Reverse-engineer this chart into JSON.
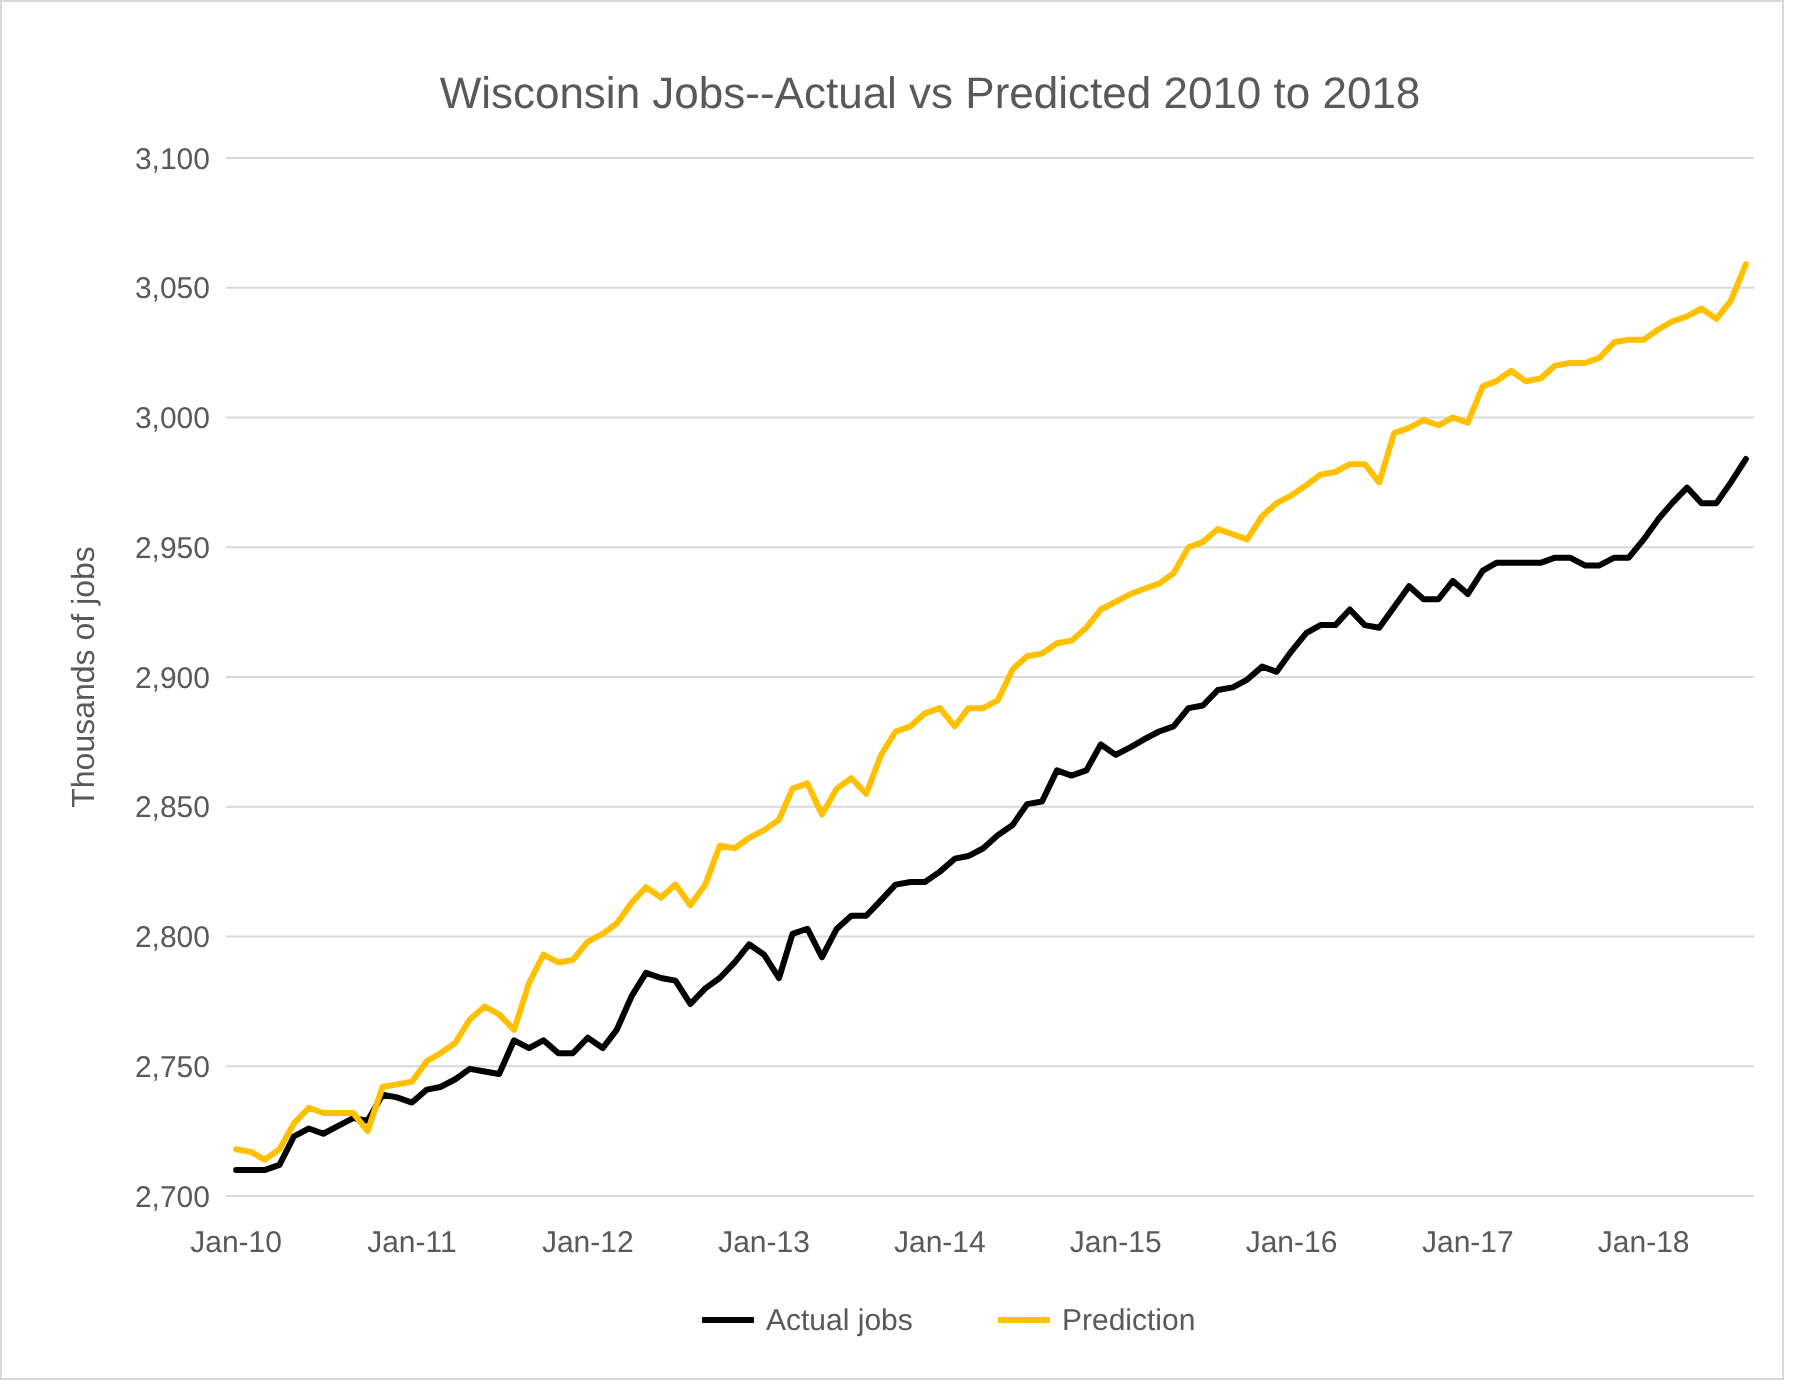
{
  "chart_data": {
    "type": "line",
    "title": "Wisconsin Jobs--Actual vs Predicted 2010 to 2018",
    "ylabel": "Thousands of jobs",
    "x": [
      "2010-01",
      "2010-02",
      "2010-03",
      "2010-04",
      "2010-05",
      "2010-06",
      "2010-07",
      "2010-08",
      "2010-09",
      "2010-10",
      "2010-11",
      "2010-12",
      "2011-01",
      "2011-02",
      "2011-03",
      "2011-04",
      "2011-05",
      "2011-06",
      "2011-07",
      "2011-08",
      "2011-09",
      "2011-10",
      "2011-11",
      "2011-12",
      "2012-01",
      "2012-02",
      "2012-03",
      "2012-04",
      "2012-05",
      "2012-06",
      "2012-07",
      "2012-08",
      "2012-09",
      "2012-10",
      "2012-11",
      "2012-12",
      "2013-01",
      "2013-02",
      "2013-03",
      "2013-04",
      "2013-05",
      "2013-06",
      "2013-07",
      "2013-08",
      "2013-09",
      "2013-10",
      "2013-11",
      "2013-12",
      "2014-01",
      "2014-02",
      "2014-03",
      "2014-04",
      "2014-05",
      "2014-06",
      "2014-07",
      "2014-08",
      "2014-09",
      "2014-10",
      "2014-11",
      "2014-12",
      "2015-01",
      "2015-02",
      "2015-03",
      "2015-04",
      "2015-05",
      "2015-06",
      "2015-07",
      "2015-08",
      "2015-09",
      "2015-10",
      "2015-11",
      "2015-12",
      "2016-01",
      "2016-02",
      "2016-03",
      "2016-04",
      "2016-05",
      "2016-06",
      "2016-07",
      "2016-08",
      "2016-09",
      "2016-10",
      "2016-11",
      "2016-12",
      "2017-01",
      "2017-02",
      "2017-03",
      "2017-04",
      "2017-05",
      "2017-06",
      "2017-07",
      "2017-08",
      "2017-09",
      "2017-10",
      "2017-11",
      "2017-12",
      "2018-01",
      "2018-02",
      "2018-03",
      "2018-04",
      "2018-05",
      "2018-06",
      "2018-07",
      "2018-08"
    ],
    "series": [
      {
        "name": "Actual jobs",
        "color": "#000000",
        "values": [
          2710,
          2710,
          2710,
          2712,
          2723,
          2726,
          2724,
          2727,
          2730,
          2729,
          2739,
          2738,
          2736,
          2741,
          2742,
          2745,
          2749,
          2748,
          2747,
          2760,
          2757,
          2760,
          2755,
          2755,
          2761,
          2757,
          2764,
          2777,
          2786,
          2784,
          2783,
          2774,
          2780,
          2784,
          2790,
          2797,
          2793,
          2784,
          2801,
          2803,
          2792,
          2803,
          2808,
          2808,
          2814,
          2820,
          2821,
          2821,
          2825,
          2830,
          2831,
          2834,
          2839,
          2843,
          2851,
          2852,
          2864,
          2862,
          2864,
          2874,
          2870,
          2873,
          2876,
          2879,
          2881,
          2888,
          2889,
          2895,
          2896,
          2899,
          2904,
          2902,
          2910,
          2917,
          2920,
          2920,
          2926,
          2920,
          2919,
          2927,
          2935,
          2930,
          2930,
          2937,
          2932,
          2941,
          2944,
          2944,
          2944,
          2944,
          2946,
          2946,
          2943,
          2943,
          2946,
          2946,
          2953,
          2961,
          2967,
          2973,
          2967,
          2967,
          2975,
          2984
        ]
      },
      {
        "name": "Prediction",
        "color": "#ffc000",
        "values": [
          2718,
          2717,
          2714,
          2718,
          2728,
          2734,
          2732,
          2732,
          2732,
          2725,
          2742,
          2743,
          2744,
          2752,
          2755,
          2759,
          2768,
          2773,
          2770,
          2764,
          2782,
          2793,
          2790,
          2791,
          2798,
          2801,
          2805,
          2813,
          2819,
          2815,
          2820,
          2812,
          2820,
          2835,
          2834,
          2838,
          2841,
          2845,
          2857,
          2859,
          2847,
          2857,
          2861,
          2855,
          2870,
          2879,
          2881,
          2886,
          2888,
          2881,
          2888,
          2888,
          2891,
          2903,
          2908,
          2909,
          2913,
          2914,
          2919,
          2926,
          2929,
          2932,
          2934,
          2936,
          2940,
          2950,
          2952,
          2957,
          2955,
          2953,
          2962,
          2967,
          2970,
          2974,
          2978,
          2979,
          2982,
          2982,
          2975,
          2994,
          2996,
          2999,
          2997,
          3000,
          2998,
          3012,
          3014,
          3018,
          3014,
          3015,
          3020,
          3021,
          3021,
          3023,
          3029,
          3030,
          3030,
          3034,
          3037,
          3039,
          3042,
          3038,
          3045,
          3059
        ]
      }
    ],
    "xlim": [
      "2009-12-11",
      "2018-08-18"
    ],
    "xticks": [
      {
        "value": "2010-01",
        "label": "Jan-10"
      },
      {
        "value": "2011-01",
        "label": "Jan-11"
      },
      {
        "value": "2012-01",
        "label": "Jan-12"
      },
      {
        "value": "2013-01",
        "label": "Jan-13"
      },
      {
        "value": "2014-01",
        "label": "Jan-14"
      },
      {
        "value": "2015-01",
        "label": "Jan-15"
      },
      {
        "value": "2016-01",
        "label": "Jan-16"
      },
      {
        "value": "2017-01",
        "label": "Jan-17"
      },
      {
        "value": "2018-01",
        "label": "Jan-18"
      }
    ],
    "ylim": [
      2700,
      3100
    ],
    "yticks": [
      {
        "value": 2700,
        "label": "2,700"
      },
      {
        "value": 2750,
        "label": "2,750"
      },
      {
        "value": 2800,
        "label": "2,800"
      },
      {
        "value": 2850,
        "label": "2,850"
      },
      {
        "value": 2900,
        "label": "2,900"
      },
      {
        "value": 2950,
        "label": "2,950"
      },
      {
        "value": 3000,
        "label": "3,000"
      },
      {
        "value": 3050,
        "label": "3,050"
      },
      {
        "value": 3100,
        "label": "3,100"
      }
    ],
    "grid": "y",
    "legend": "bottom",
    "marker": "none",
    "line_style": "solid"
  }
}
